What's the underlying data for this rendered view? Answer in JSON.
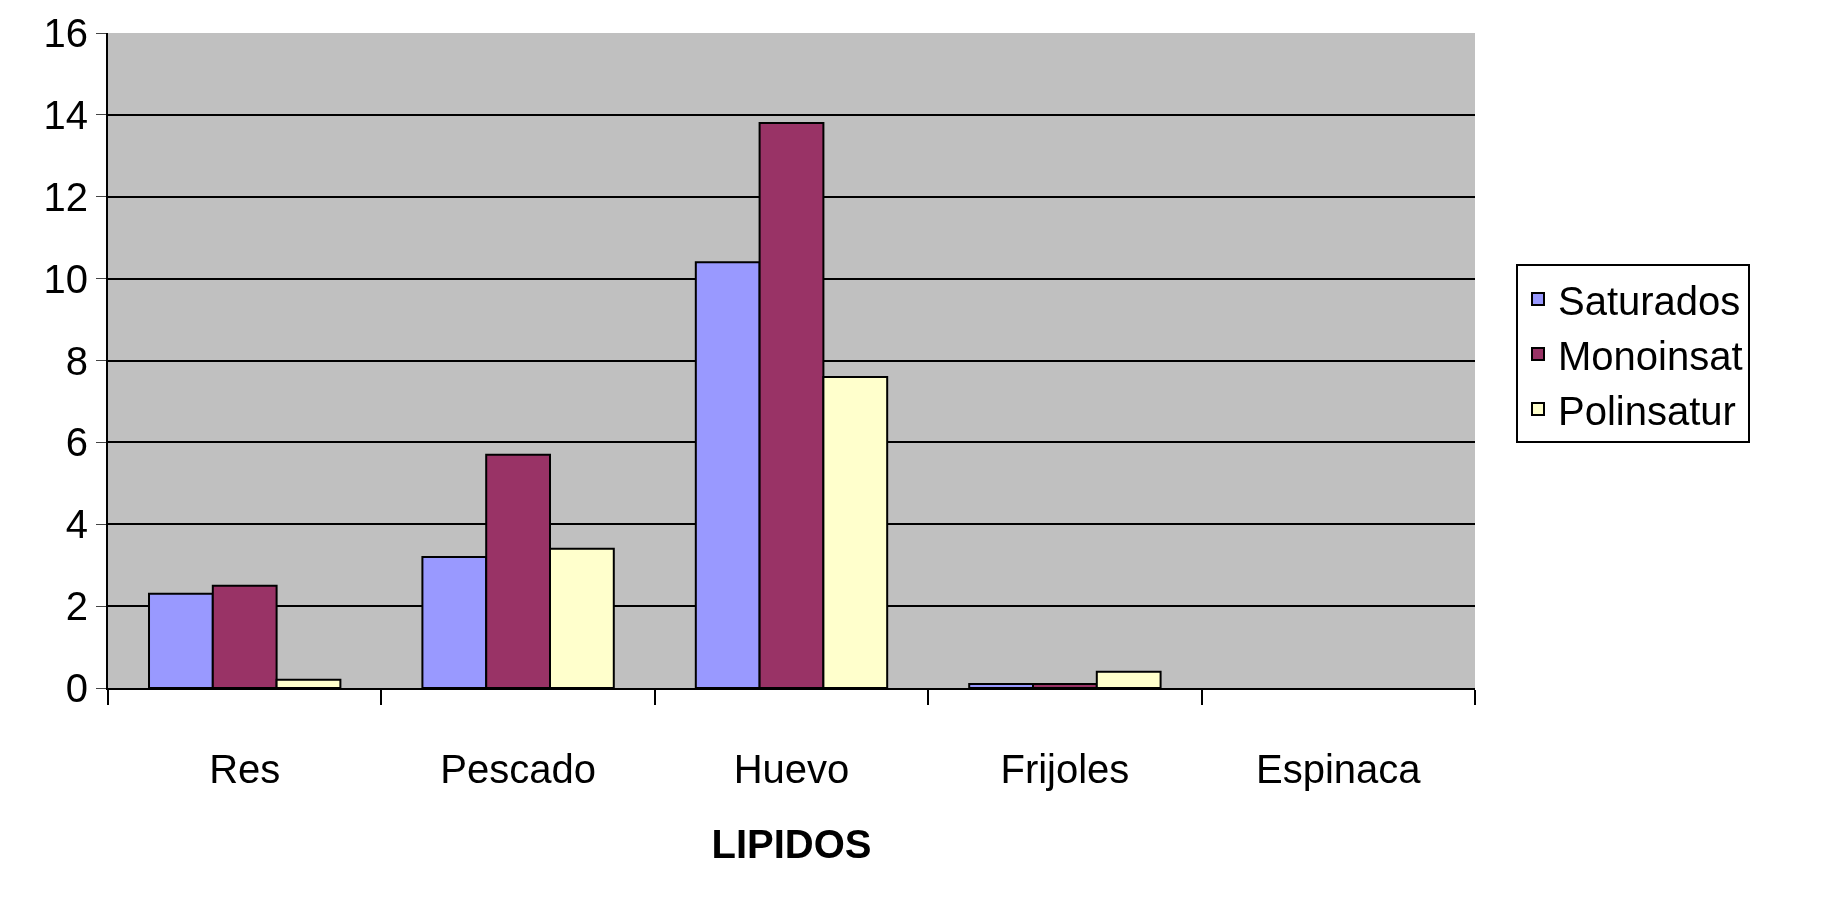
{
  "chart_data": {
    "type": "bar",
    "xlabel": "LIPIDOS",
    "categories": [
      "Res",
      "Pescado",
      "Huevo",
      "Frijoles",
      "Espinaca"
    ],
    "series": [
      {
        "name": "Saturados",
        "color": "#9999ff",
        "values": [
          2.3,
          3.2,
          10.4,
          0.1,
          null
        ]
      },
      {
        "name": "Monoinsat",
        "color": "#993366",
        "values": [
          2.5,
          5.7,
          13.8,
          0.1,
          null
        ]
      },
      {
        "name": "Polinsatur",
        "color": "#ffffcc",
        "values": [
          0.2,
          3.4,
          7.6,
          0.4,
          null
        ]
      }
    ],
    "ylim": [
      0,
      16
    ],
    "yticks": [
      0,
      2,
      4,
      6,
      8,
      10,
      12,
      14,
      16
    ],
    "grid": "y",
    "legend": "right"
  }
}
